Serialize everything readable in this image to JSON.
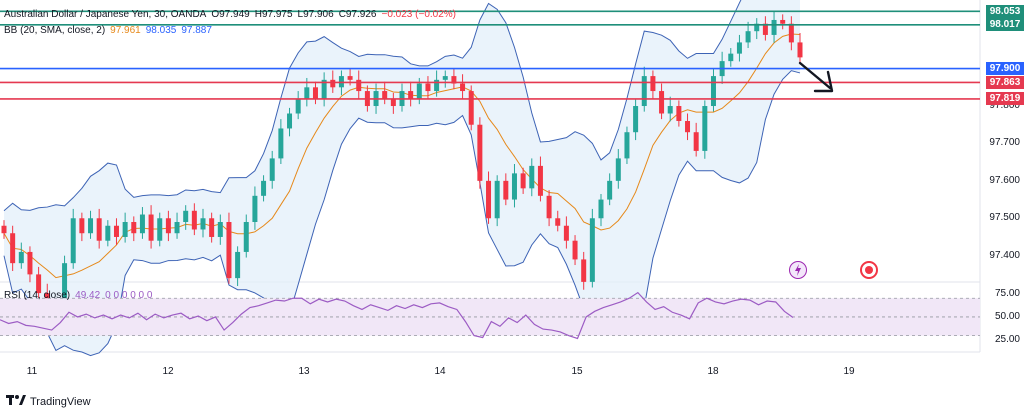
{
  "header": {
    "symbol": "Australian Dollar / Japanese Yen, 30, OANDA",
    "open": "O97.949",
    "high": "H97.975",
    "low": "L97.906",
    "close": "C97.926",
    "change": "−0.023 (−0.02%)",
    "bb_label": "BB (20, SMA, close, 2)",
    "bb_basis": "97.961",
    "bb_upper": "98.035",
    "bb_lower": "97.887",
    "rsi_label": "RSI (14, close)",
    "rsi_value": "49.42",
    "rsi_extra": "0 0 0 0 0 0"
  },
  "footer": {
    "brand": "TradingView"
  },
  "icons": [
    "lightning-icon",
    "record-icon"
  ],
  "colors": {
    "up": "#26a69a",
    "down": "#f23645",
    "bb_fill": "#e3effa",
    "bb_band": "#3d63b5",
    "bb_basis": "#e6891a",
    "rsi_line": "#9c5cc4",
    "rsi_fill": "#f1e7f7",
    "hline_green": "#1f8f7a",
    "hline_blue": "#2962ff",
    "hline_red": "#e53950"
  },
  "chart_data": {
    "type": "candlestick",
    "title": "Australian Dollar / Japanese Yen, 30, OANDA",
    "price_axis": {
      "ticks": [
        "97.400",
        "97.500",
        "97.600",
        "97.700",
        "97.800"
      ],
      "range": [
        97.335,
        98.07
      ]
    },
    "rsi_axis": {
      "ticks": [
        "75.00",
        "50.00",
        "25.00"
      ],
      "range": [
        20,
        82
      ]
    },
    "x_ticks": [
      "11",
      "12",
      "13",
      "14",
      "15",
      "18",
      "19"
    ],
    "price_levels": [
      {
        "label": "98.053",
        "price": 98.053,
        "color": "green"
      },
      {
        "label": "98.017",
        "price": 98.017,
        "color": "green"
      },
      {
        "label": "97.900",
        "price": 97.9,
        "color": "blue"
      },
      {
        "label": "97.863",
        "price": 97.863,
        "color": "red"
      },
      {
        "label": "97.819",
        "price": 97.819,
        "color": "red"
      }
    ],
    "annotation": "arrow pointing down-right",
    "closes": [
      97.46,
      97.38,
      97.41,
      97.35,
      97.3,
      97.27,
      97.22,
      97.38,
      97.5,
      97.46,
      97.5,
      97.44,
      97.48,
      97.45,
      97.49,
      97.46,
      97.51,
      97.44,
      97.5,
      97.46,
      97.49,
      97.52,
      97.47,
      97.5,
      97.45,
      97.49,
      97.34,
      97.41,
      97.49,
      97.56,
      97.6,
      97.66,
      97.74,
      97.78,
      97.82,
      97.85,
      97.82,
      97.87,
      97.85,
      97.88,
      97.87,
      97.84,
      97.8,
      97.84,
      97.82,
      97.8,
      97.84,
      97.82,
      97.86,
      97.84,
      97.87,
      97.88,
      97.86,
      97.84,
      97.75,
      97.6,
      97.5,
      97.6,
      97.55,
      97.62,
      97.58,
      97.64,
      97.56,
      97.5,
      97.48,
      97.44,
      97.39,
      97.33,
      97.5,
      97.55,
      97.6,
      97.66,
      97.73,
      97.8,
      97.88,
      97.84,
      97.78,
      97.8,
      97.76,
      97.73,
      97.68,
      97.8,
      97.88,
      97.92,
      97.94,
      97.97,
      98.0,
      98.02,
      97.99,
      98.03,
      98.02,
      97.97,
      97.93
    ],
    "rsi": [
      47,
      43,
      45,
      41,
      40,
      38,
      36,
      44,
      55,
      50,
      53,
      49,
      52,
      48,
      52,
      49,
      54,
      47,
      53,
      49,
      52,
      54,
      48,
      51,
      46,
      50,
      36,
      44,
      53,
      60,
      62,
      65,
      68,
      67,
      70,
      70,
      64,
      69,
      66,
      69,
      67,
      62,
      58,
      63,
      60,
      57,
      62,
      59,
      63,
      60,
      64,
      65,
      61,
      58,
      45,
      30,
      28,
      45,
      40,
      49,
      44,
      52,
      42,
      37,
      36,
      34,
      30,
      27,
      50,
      56,
      60,
      63,
      66,
      70,
      76,
      66,
      58,
      61,
      55,
      52,
      48,
      65,
      70,
      66,
      64,
      67,
      69,
      68,
      63,
      67,
      66,
      56,
      49.42
    ]
  }
}
